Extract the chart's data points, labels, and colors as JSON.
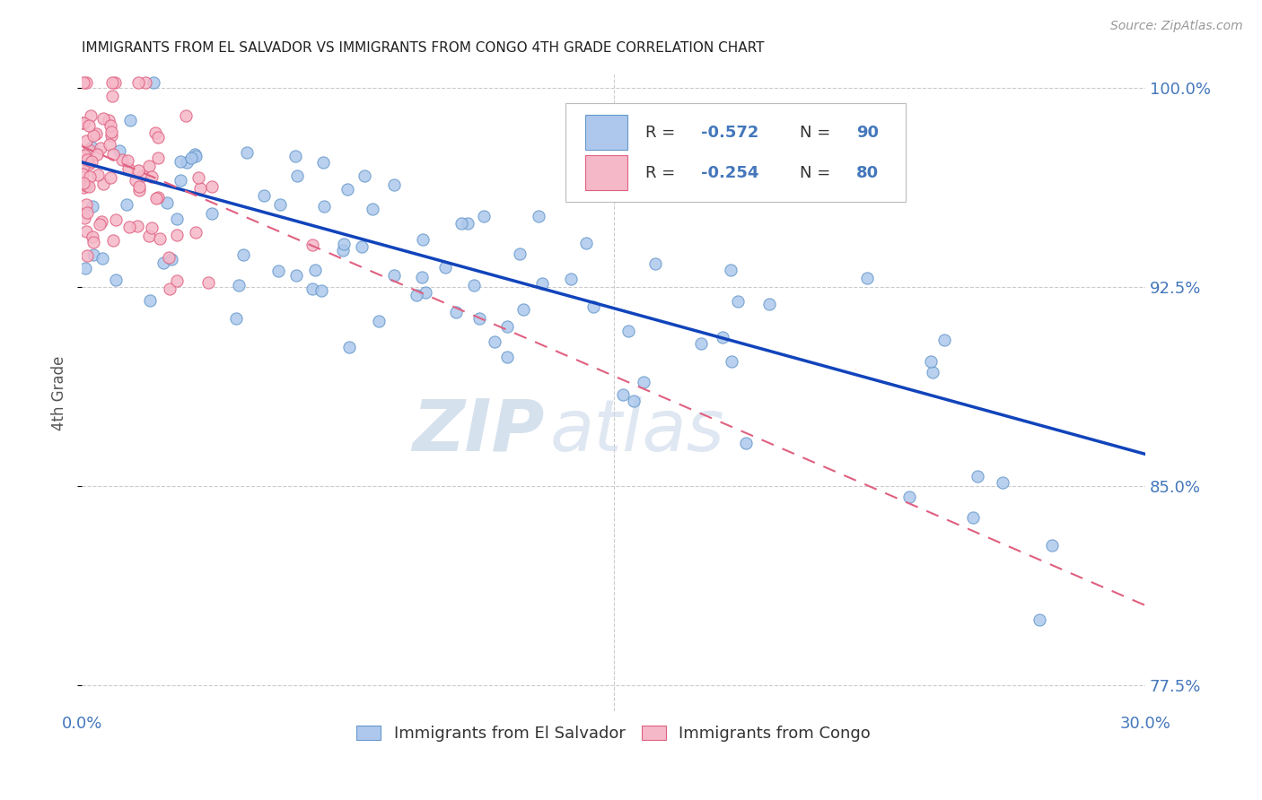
{
  "title": "IMMIGRANTS FROM EL SALVADOR VS IMMIGRANTS FROM CONGO 4TH GRADE CORRELATION CHART",
  "source": "Source: ZipAtlas.com",
  "ylabel": "4th Grade",
  "xlim": [
    0.0,
    0.3
  ],
  "ylim": [
    0.765,
    1.005
  ],
  "xtick_labels": [
    "0.0%",
    "30.0%"
  ],
  "ytick_labels": [
    "77.5%",
    "85.0%",
    "92.5%",
    "100.0%"
  ],
  "ytick_values": [
    0.775,
    0.85,
    0.925,
    1.0
  ],
  "xtick_values": [
    0.0,
    0.3
  ],
  "legend_r1_val": "-0.572",
  "legend_n1_val": "90",
  "legend_r2_val": "-0.254",
  "legend_n2_val": "80",
  "scatter1_color": "#adc8ec",
  "scatter1_edge": "#6699cc",
  "scatter2_color": "#f5b8c8",
  "scatter2_edge": "#e06080",
  "line1_color": "#1144bb",
  "line2_color": "#e06080",
  "watermark_zip": "ZIP",
  "watermark_atlas": "atlas",
  "legend1_label": "Immigrants from El Salvador",
  "legend2_label": "Immigrants from Congo",
  "title_color": "#222222",
  "tick_color": "#4477bb",
  "grid_color": "#cccccc",
  "seed": 7,
  "n_salvador": 90,
  "n_congo": 80,
  "line1_x0": 0.0,
  "line1_y0": 0.972,
  "line1_x1": 0.3,
  "line1_y1": 0.862,
  "line2_x0": 0.0,
  "line2_y0": 0.978,
  "line2_x1": 0.3,
  "line2_y1": 0.805
}
